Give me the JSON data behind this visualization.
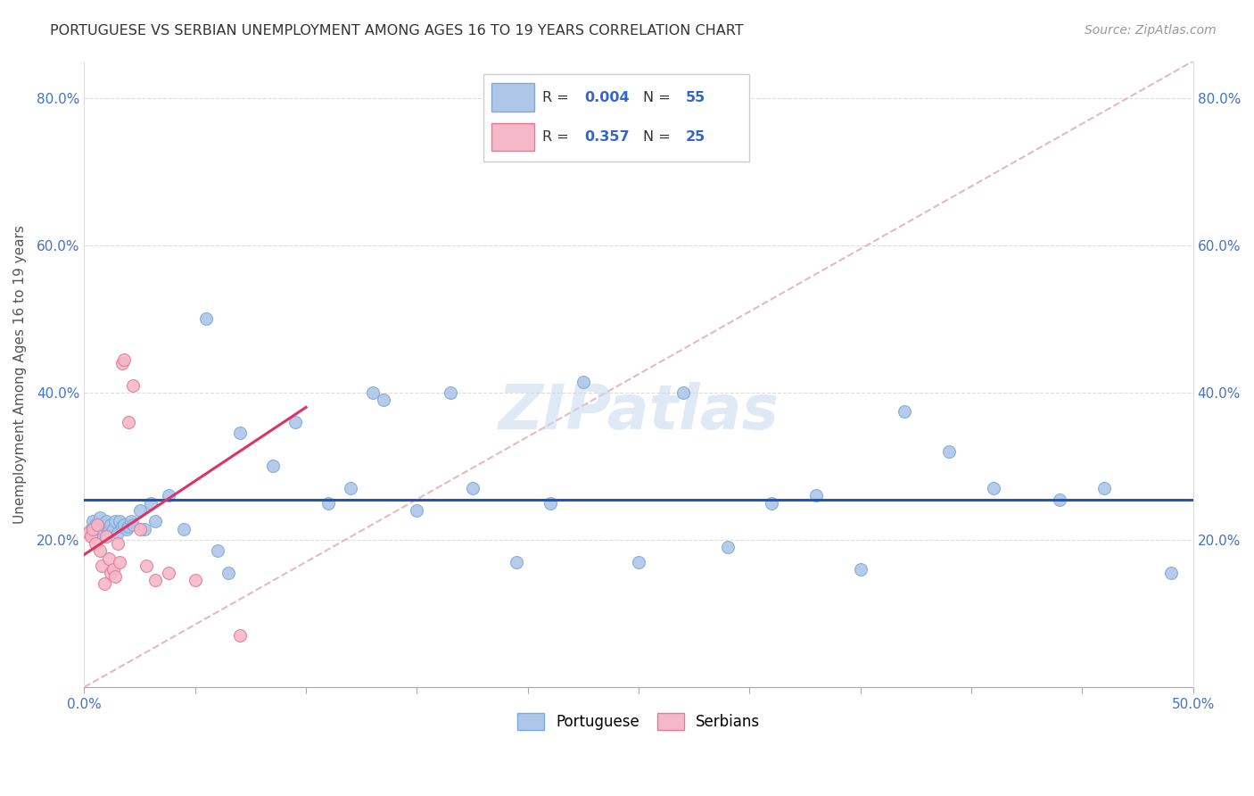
{
  "title": "PORTUGUESE VS SERBIAN UNEMPLOYMENT AMONG AGES 16 TO 19 YEARS CORRELATION CHART",
  "source": "Source: ZipAtlas.com",
  "ylabel": "Unemployment Among Ages 16 to 19 years",
  "xlim": [
    0.0,
    0.5
  ],
  "ylim": [
    0.0,
    0.85
  ],
  "xticks_minor": [
    0.0,
    0.05,
    0.1,
    0.15,
    0.2,
    0.25,
    0.3,
    0.35,
    0.4,
    0.45,
    0.5
  ],
  "yticks": [
    0.0,
    0.2,
    0.4,
    0.6,
    0.8
  ],
  "yticklabels": [
    "",
    "20.0%",
    "40.0%",
    "60.0%",
    "80.0%"
  ],
  "portuguese_x": [
    0.003,
    0.004,
    0.005,
    0.006,
    0.007,
    0.008,
    0.009,
    0.01,
    0.01,
    0.011,
    0.012,
    0.013,
    0.014,
    0.015,
    0.016,
    0.017,
    0.018,
    0.019,
    0.02,
    0.021,
    0.022,
    0.025,
    0.027,
    0.03,
    0.032,
    0.038,
    0.045,
    0.055,
    0.06,
    0.065,
    0.07,
    0.085,
    0.095,
    0.11,
    0.12,
    0.13,
    0.135,
    0.15,
    0.165,
    0.175,
    0.195,
    0.21,
    0.225,
    0.25,
    0.27,
    0.29,
    0.31,
    0.33,
    0.35,
    0.37,
    0.39,
    0.41,
    0.44,
    0.46,
    0.49
  ],
  "portuguese_y": [
    0.215,
    0.225,
    0.22,
    0.21,
    0.23,
    0.215,
    0.22,
    0.218,
    0.225,
    0.212,
    0.22,
    0.215,
    0.225,
    0.21,
    0.225,
    0.218,
    0.22,
    0.215,
    0.218,
    0.225,
    0.22,
    0.24,
    0.215,
    0.25,
    0.225,
    0.26,
    0.215,
    0.5,
    0.185,
    0.155,
    0.345,
    0.3,
    0.36,
    0.25,
    0.27,
    0.4,
    0.39,
    0.24,
    0.4,
    0.27,
    0.17,
    0.25,
    0.415,
    0.17,
    0.4,
    0.19,
    0.25,
    0.26,
    0.16,
    0.375,
    0.32,
    0.27,
    0.255,
    0.27,
    0.155
  ],
  "serbian_x": [
    0.002,
    0.003,
    0.004,
    0.005,
    0.006,
    0.007,
    0.008,
    0.009,
    0.01,
    0.011,
    0.012,
    0.013,
    0.014,
    0.015,
    0.016,
    0.017,
    0.018,
    0.02,
    0.022,
    0.025,
    0.028,
    0.032,
    0.038,
    0.05,
    0.07
  ],
  "serbian_y": [
    0.21,
    0.205,
    0.215,
    0.195,
    0.22,
    0.185,
    0.165,
    0.14,
    0.205,
    0.175,
    0.155,
    0.16,
    0.15,
    0.195,
    0.17,
    0.44,
    0.445,
    0.36,
    0.41,
    0.215,
    0.165,
    0.145,
    0.155,
    0.145,
    0.07
  ],
  "portuguese_color": "#aec6e8",
  "serbian_color": "#f4b8c8",
  "portuguese_edge": "#7aabde",
  "serbian_edge": "#e8789a",
  "trendline_portuguese_color": "#2255bb",
  "trendline_serbian_color": "#dd3366",
  "diagonal_color": "#e8b8c0",
  "r_portuguese": "0.004",
  "n_portuguese": "55",
  "r_serbian": "0.357",
  "n_serbian": "25",
  "watermark": "ZIPatlas",
  "marker_size": 100,
  "background_color": "#ffffff",
  "grid_color": "#dddddd",
  "tick_color": "#4472c4"
}
